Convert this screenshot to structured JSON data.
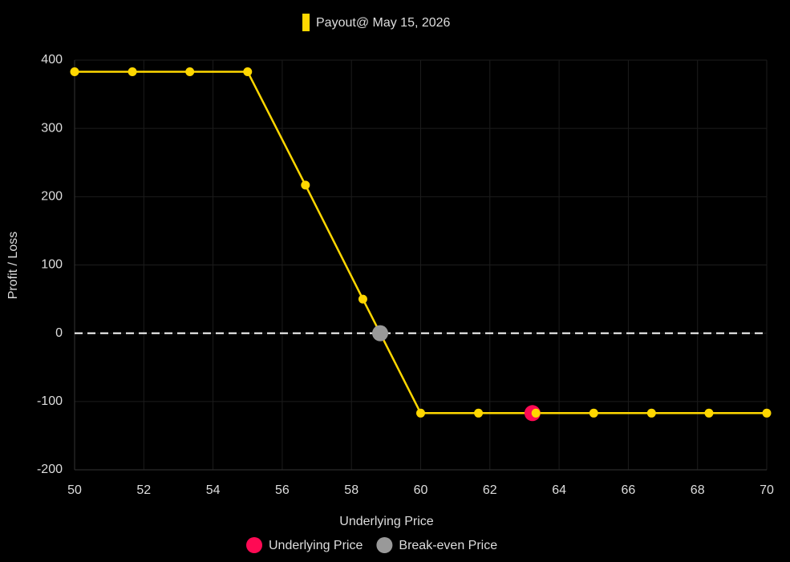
{
  "chart_data": {
    "type": "line",
    "x_label": "Underlying Price",
    "y_label": "Profit / Loss",
    "x": [
      50,
      51.67,
      53.33,
      55,
      56.67,
      58.33,
      60,
      61.67,
      63.33,
      65,
      66.67,
      68.33,
      70
    ],
    "series": [
      {
        "name": "Payout@ May 15, 2026",
        "color": "#ffd700",
        "values": [
          383,
          383,
          383,
          383,
          217,
          50,
          -117,
          -117,
          -117,
          -117,
          -117,
          -117,
          -117
        ]
      }
    ],
    "markers": [
      {
        "name": "Underlying Price",
        "color": "#ff0a54",
        "x": 63.23,
        "y": -117
      },
      {
        "name": "Break-even Price",
        "color": "#999999",
        "x": 58.83,
        "y": 0
      }
    ],
    "xlim": [
      50,
      70
    ],
    "xticks": [
      50,
      52,
      54,
      56,
      58,
      60,
      62,
      64,
      66,
      68,
      70
    ],
    "ylim": [
      -200,
      400
    ],
    "yticks": [
      -200,
      -100,
      0,
      100,
      200,
      300,
      400
    ],
    "grid": true,
    "zero_line": true
  }
}
